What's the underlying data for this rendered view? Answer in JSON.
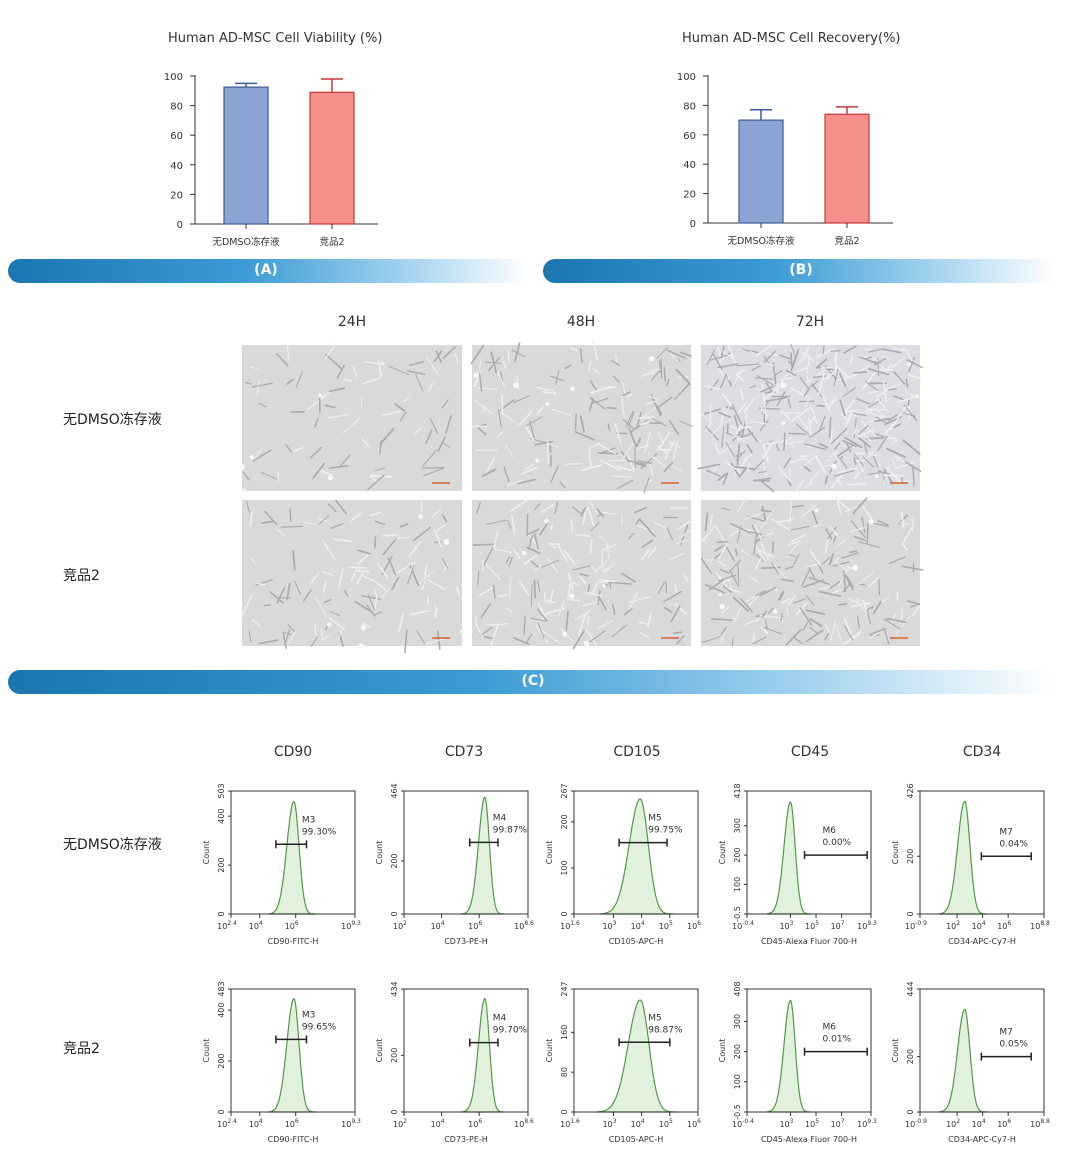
{
  "row_labels": [
    "无DMSO冻存液",
    "竞品2"
  ],
  "banners": {
    "a": "(A)",
    "b": "(B)",
    "c": "(C)"
  },
  "colors": {
    "blue_fill": "#8aa5d3",
    "blue_stroke": "#3c5a9a",
    "red_fill": "#f48f8a",
    "red_stroke": "#c8383a",
    "banner": "#1b76b0",
    "histogram_fill": "#e2f1de",
    "histogram_stroke": "#4f9a45"
  },
  "micrographs": {
    "time_points": [
      "24H",
      "48H",
      "72H"
    ],
    "conditions": [
      "无DMSO冻存液",
      "竞品2"
    ]
  },
  "chart_data": [
    {
      "type": "bar",
      "title": "Human AD-MSC Cell Viability (%)",
      "categories": [
        "无DMSO冻存液",
        "竞品2"
      ],
      "values": [
        92.5,
        89
      ],
      "error": [
        2.5,
        9
      ],
      "ylim": [
        0,
        100
      ],
      "yticks": [
        "0",
        "20",
        "40",
        "60",
        "80",
        "100"
      ],
      "grid": false
    },
    {
      "type": "bar",
      "title": "Human AD-MSC Cell Recovery(%)",
      "categories": [
        "无DMSO冻存液",
        "竞品2"
      ],
      "values": [
        70,
        74
      ],
      "error": [
        7,
        5
      ],
      "ylim": [
        0,
        100
      ],
      "yticks": [
        "0",
        "20",
        "40",
        "60",
        "80",
        "100"
      ],
      "grid": false
    },
    {
      "type": "histogram-grid",
      "markers": [
        "CD90",
        "CD73",
        "CD105",
        "CD45",
        "CD34"
      ],
      "rows": [
        {
          "condition": "无DMSO冻存液",
          "panels": [
            {
              "xlabel": "CD90-FITC-H",
              "ylabel": "Count",
              "xlim": [
                2.4,
                9.3
              ],
              "xticks": [
                "2.4",
                "4",
                "6",
                "9.3"
              ],
              "ylim": [
                0,
                503
              ],
              "yticks": [
                "0",
                "200",
                "400",
                "503"
              ],
              "peak_log": 5.9,
              "peak_count": 460,
              "spread": 0.35,
              "gate": [
                4.9,
                6.6
              ],
              "gate_count": 285,
              "gate_name": "M3",
              "percent": "99.30%"
            },
            {
              "xlabel": "CD73-PE-H",
              "ylabel": "Count",
              "xlim": [
                2,
                8.6
              ],
              "xticks": [
                "2",
                "4",
                "6",
                "8.6"
              ],
              "ylim": [
                0,
                464
              ],
              "yticks": [
                "0",
                "200",
                "464"
              ],
              "peak_log": 6.3,
              "peak_count": 440,
              "spread": 0.3,
              "gate": [
                5.5,
                7.0
              ],
              "gate_count": 270,
              "gate_name": "M4",
              "percent": "99.87%"
            },
            {
              "xlabel": "CD105-APC-H",
              "ylabel": "Count",
              "xlim": [
                1.6,
                6
              ],
              "xticks": [
                "1.6",
                "3",
                "4",
                "5",
                "6"
              ],
              "ylim": [
                0,
                267
              ],
              "yticks": [
                "0",
                "100",
                "200",
                "267"
              ],
              "peak_log": 3.95,
              "peak_count": 250,
              "spread": 0.35,
              "gate": [
                3.2,
                4.9
              ],
              "gate_count": 155,
              "gate_name": "M5",
              "percent": "99.75%"
            },
            {
              "xlabel": "CD45-Alexa Fluor 700-H",
              "ylabel": "Count",
              "xlim": [
                -0.4,
                9.3
              ],
              "xticks": [
                "-0.4",
                "3",
                "5",
                "7",
                "9.3"
              ],
              "ylim": [
                -0.5,
                418
              ],
              "yticks": [
                "-0.5",
                "100",
                "200",
                "300",
                "418"
              ],
              "peak_log": 3.0,
              "peak_count": 380,
              "spread": 0.45,
              "gate": [
                4.1,
                9.0
              ],
              "gate_count": 200,
              "gate_name": "M6",
              "percent": "0.00%"
            },
            {
              "xlabel": "CD34-APC-Cy7-H",
              "ylabel": "Count",
              "xlim": [
                -0.9,
                8.8
              ],
              "xticks": [
                "-0.9",
                "2",
                "4",
                "6",
                "8.8"
              ],
              "ylim": [
                0,
                426
              ],
              "yticks": [
                "0",
                "200",
                "426"
              ],
              "peak_log": 2.6,
              "peak_count": 390,
              "spread": 0.5,
              "gate": [
                3.9,
                7.8
              ],
              "gate_count": 200,
              "gate_name": "M7",
              "percent": "0.04%"
            }
          ]
        },
        {
          "condition": "竞品2",
          "panels": [
            {
              "xlabel": "CD90-FITC-H",
              "ylabel": "Count",
              "xlim": [
                2.4,
                9.3
              ],
              "xticks": [
                "2.4",
                "4",
                "6",
                "9.3"
              ],
              "ylim": [
                0,
                483
              ],
              "yticks": [
                "0",
                "200",
                "400",
                "483"
              ],
              "peak_log": 5.9,
              "peak_count": 445,
              "spread": 0.35,
              "gate": [
                4.9,
                6.6
              ],
              "gate_count": 285,
              "gate_name": "M3",
              "percent": "99.65%"
            },
            {
              "xlabel": "CD73-PE-H",
              "ylabel": "Count",
              "xlim": [
                2,
                8.6
              ],
              "xticks": [
                "2",
                "4",
                "6",
                "8.6"
              ],
              "ylim": [
                0,
                434
              ],
              "yticks": [
                "0",
                "200",
                "434"
              ],
              "peak_log": 6.3,
              "peak_count": 400,
              "spread": 0.3,
              "gate": [
                5.5,
                7.0
              ],
              "gate_count": 245,
              "gate_name": "M4",
              "percent": "99.70%"
            },
            {
              "xlabel": "CD105-APC-H",
              "ylabel": "Count",
              "xlim": [
                1.6,
                6
              ],
              "xticks": [
                "1.6",
                "3",
                "4",
                "5",
                "6"
              ],
              "ylim": [
                0,
                247
              ],
              "yticks": [
                "0",
                "80",
                "160",
                "247"
              ],
              "peak_log": 3.95,
              "peak_count": 225,
              "spread": 0.38,
              "gate": [
                3.2,
                5.0
              ],
              "gate_count": 140,
              "gate_name": "M5",
              "percent": "98.87%"
            },
            {
              "xlabel": "CD45-Alexa Fluor 700-H",
              "ylabel": "Count",
              "xlim": [
                -0.4,
                9.3
              ],
              "xticks": [
                "-0.4",
                "3",
                "5",
                "7",
                "9.3"
              ],
              "ylim": [
                -0.5,
                408
              ],
              "yticks": [
                "-0.5",
                "100",
                "200",
                "300",
                "408"
              ],
              "peak_log": 3.0,
              "peak_count": 370,
              "spread": 0.45,
              "gate": [
                4.1,
                9.0
              ],
              "gate_count": 200,
              "gate_name": "M6",
              "percent": "0.01%"
            },
            {
              "xlabel": "CD34-APC-Cy7-H",
              "ylabel": "Count",
              "xlim": [
                -0.9,
                8.8
              ],
              "xticks": [
                "-0.9",
                "2",
                "4",
                "6",
                "8.8"
              ],
              "ylim": [
                0,
                444
              ],
              "yticks": [
                "0",
                "200",
                "444"
              ],
              "peak_log": 2.6,
              "peak_count": 370,
              "spread": 0.5,
              "gate": [
                3.9,
                7.8
              ],
              "gate_count": 200,
              "gate_name": "M7",
              "percent": "0.05%"
            }
          ]
        }
      ]
    }
  ]
}
